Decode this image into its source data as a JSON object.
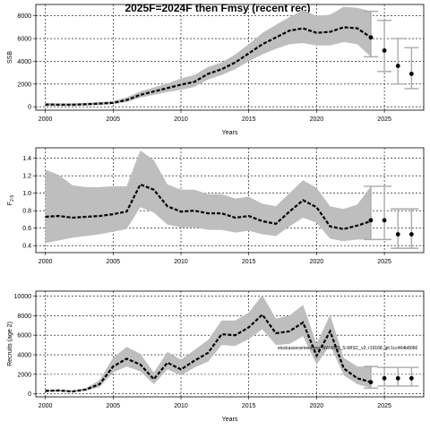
{
  "title": "2025F=2024F then Fmsy (recent rec)",
  "annotation": "stockassessment.org, NWWSS_S-WISC_v2, r19168, git:1cc464b8066",
  "colors": {
    "band": "#bebebe",
    "line": "#000000",
    "grid": "#000000",
    "ci": "#aaaaaa"
  },
  "chart_data": [
    {
      "type": "line",
      "ylabel": "SSB",
      "xlabel": "Years",
      "xlim": [
        1999.3,
        2027.9
      ],
      "ylim": [
        -300,
        9000
      ],
      "xticks": [
        2000,
        2005,
        2010,
        2015,
        2020,
        2025
      ],
      "yticks": [
        0,
        2000,
        4000,
        6000,
        8000
      ],
      "grid": true,
      "x": [
        2000,
        2001,
        2002,
        2003,
        2004,
        2005,
        2006,
        2007,
        2008,
        2009,
        2010,
        2011,
        2012,
        2013,
        2014,
        2015,
        2016,
        2017,
        2018,
        2019,
        2020,
        2021,
        2022,
        2023,
        2024
      ],
      "estimate": [
        200,
        180,
        180,
        220,
        280,
        350,
        600,
        1050,
        1350,
        1650,
        1950,
        2200,
        2900,
        3300,
        3900,
        4700,
        5500,
        6100,
        6700,
        6900,
        6500,
        6600,
        7000,
        6900,
        6100
      ],
      "lower": [
        80,
        80,
        80,
        110,
        160,
        230,
        420,
        800,
        1050,
        1300,
        1500,
        1750,
        2400,
        2800,
        3300,
        4000,
        4600,
        5100,
        5500,
        5600,
        5400,
        5400,
        5700,
        5500,
        4400
      ],
      "upper": [
        350,
        300,
        300,
        350,
        420,
        500,
        820,
        1350,
        1700,
        2050,
        2500,
        2800,
        3500,
        3900,
        4600,
        5500,
        6500,
        7200,
        7900,
        8500,
        8000,
        8100,
        8800,
        8700,
        8400
      ],
      "forecast": [
        {
          "x": 2024,
          "median": 6100,
          "lower": 4400,
          "upper": 8400
        },
        {
          "x": 2025,
          "median": 4950,
          "lower": 3100,
          "upper": 7600
        },
        {
          "x": 2026,
          "median": 3600,
          "lower": 2000,
          "upper": 6000
        },
        {
          "x": 2027,
          "median": 2900,
          "lower": 1600,
          "upper": 5200
        }
      ]
    },
    {
      "type": "line",
      "ylabel": "F",
      "ylabel_sub": "2-5",
      "xlabel": "",
      "xlim": [
        1999.3,
        2027.9
      ],
      "ylim": [
        0.32,
        1.52
      ],
      "xticks": [
        2000,
        2005,
        2010,
        2015,
        2020,
        2025
      ],
      "yticks": [
        0.4,
        0.6,
        0.8,
        1.0,
        1.2,
        1.4
      ],
      "ytick_labels": [
        "0.4",
        "0.6",
        "0.8",
        "1.0",
        "1.2",
        "1.4"
      ],
      "grid": true,
      "x": [
        2000,
        2001,
        2002,
        2003,
        2004,
        2005,
        2006,
        2007,
        2008,
        2009,
        2010,
        2011,
        2012,
        2013,
        2014,
        2015,
        2016,
        2017,
        2018,
        2019,
        2020,
        2021,
        2022,
        2023,
        2024
      ],
      "estimate": [
        0.73,
        0.74,
        0.72,
        0.73,
        0.74,
        0.76,
        0.79,
        1.1,
        1.04,
        0.85,
        0.79,
        0.8,
        0.77,
        0.77,
        0.72,
        0.74,
        0.68,
        0.65,
        0.79,
        0.92,
        0.84,
        0.62,
        0.59,
        0.63,
        0.68
      ],
      "lower": [
        0.43,
        0.46,
        0.49,
        0.51,
        0.53,
        0.56,
        0.59,
        0.84,
        0.78,
        0.64,
        0.61,
        0.61,
        0.58,
        0.58,
        0.55,
        0.57,
        0.53,
        0.51,
        0.62,
        0.72,
        0.66,
        0.48,
        0.45,
        0.47,
        0.47
      ],
      "upper": [
        1.27,
        1.21,
        1.09,
        1.07,
        1.07,
        1.08,
        1.08,
        1.49,
        1.38,
        1.1,
        1.04,
        1.04,
        0.99,
        0.99,
        0.94,
        0.96,
        0.88,
        0.85,
        1.0,
        1.15,
        1.06,
        0.85,
        0.82,
        0.87,
        1.08
      ],
      "forecast": [
        {
          "x": 2024,
          "median": 0.69,
          "lower": 0.47,
          "upper": 1.08
        },
        {
          "x": 2025,
          "median": 0.69,
          "lower": 0.47,
          "upper": 1.08
        },
        {
          "x": 2026,
          "median": 0.53,
          "lower": 0.37,
          "upper": 0.82
        },
        {
          "x": 2027,
          "median": 0.53,
          "lower": 0.37,
          "upper": 0.82
        }
      ]
    },
    {
      "type": "line",
      "ylabel": "Recruits (age 2)",
      "xlabel": "Years",
      "xlim": [
        1999.3,
        2027.9
      ],
      "ylim": [
        -300,
        10500
      ],
      "xticks": [
        2000,
        2005,
        2010,
        2015,
        2020,
        2025
      ],
      "yticks": [
        0,
        2000,
        4000,
        6000,
        8000,
        10000
      ],
      "grid": true,
      "x": [
        2000,
        2001,
        2002,
        2003,
        2004,
        2005,
        2006,
        2007,
        2008,
        2009,
        2010,
        2011,
        2012,
        2013,
        2014,
        2015,
        2016,
        2017,
        2018,
        2019,
        2020,
        2021,
        2022,
        2023,
        2024
      ],
      "estimate": [
        300,
        350,
        250,
        450,
        1000,
        2800,
        3600,
        3000,
        1500,
        3200,
        2500,
        3400,
        4200,
        6100,
        6000,
        6800,
        8100,
        6200,
        6400,
        7300,
        3900,
        6400,
        2600,
        1600,
        1200
      ],
      "lower": [
        200,
        250,
        180,
        350,
        700,
        2200,
        2800,
        2300,
        1000,
        2500,
        1900,
        2700,
        3300,
        5000,
        4900,
        5600,
        6600,
        5000,
        5100,
        5900,
        3000,
        5000,
        1900,
        1000,
        600
      ],
      "upper": [
        450,
        450,
        350,
        600,
        1400,
        3700,
        4800,
        4100,
        2200,
        4300,
        3500,
        4500,
        5500,
        7500,
        7500,
        8300,
        10100,
        7700,
        8000,
        9100,
        5100,
        8100,
        3700,
        2800,
        2800
      ],
      "forecast": [
        {
          "x": 2024,
          "median": 1200,
          "lower": 600,
          "upper": 2800
        },
        {
          "x": 2025,
          "median": 1600,
          "lower": 800,
          "upper": 2700
        },
        {
          "x": 2026,
          "median": 1600,
          "lower": 800,
          "upper": 2700
        },
        {
          "x": 2027,
          "median": 1600,
          "lower": 800,
          "upper": 2700
        }
      ]
    }
  ]
}
